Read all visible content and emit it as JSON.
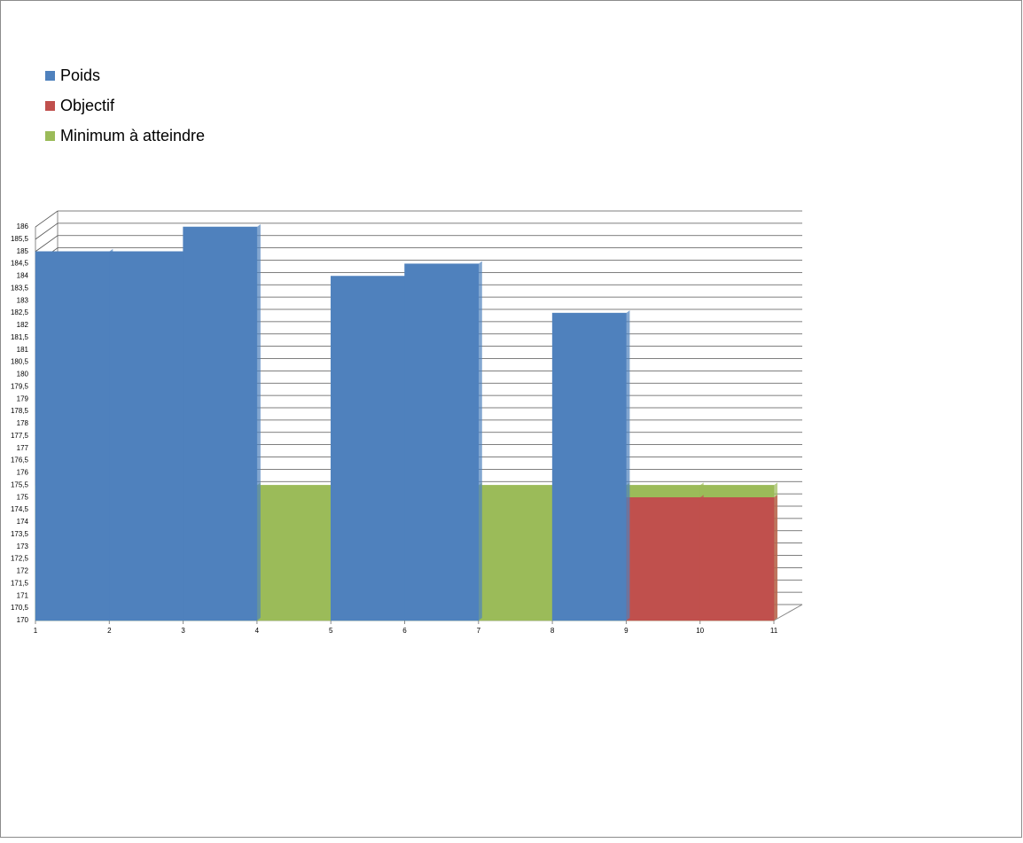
{
  "chart_data": {
    "type": "step-area",
    "x": [
      1,
      2,
      3,
      4,
      5,
      6,
      7,
      8,
      9,
      10,
      11
    ],
    "series": [
      {
        "name": "Minimum à atteindre",
        "color": "#9bbb59",
        "values": [
          175.5,
          175.5,
          175.5,
          175.5,
          175.5,
          175.5,
          175.5,
          175.5,
          175.5,
          175.5,
          null
        ]
      },
      {
        "name": "Objectif",
        "color": "#c0504d",
        "values": [
          null,
          null,
          null,
          null,
          null,
          null,
          null,
          null,
          175,
          175,
          null
        ]
      },
      {
        "name": "Poids",
        "color": "#4f81bd",
        "values": [
          185,
          185,
          186,
          null,
          184,
          184.5,
          null,
          182.5,
          null,
          null,
          null
        ]
      }
    ],
    "legend_order": [
      2,
      1,
      0
    ],
    "xlim": [
      1,
      11
    ],
    "xticks": [
      1,
      2,
      3,
      4,
      5,
      6,
      7,
      8,
      9,
      10,
      11
    ],
    "ylim": [
      170,
      186
    ],
    "yticks": [
      170,
      {
        "value": 170.5,
        "label": "170,5"
      },
      171,
      {
        "value": 171.5,
        "label": "171,5"
      },
      172,
      {
        "value": 172.5,
        "label": "172,5"
      },
      173,
      {
        "value": 173.5,
        "label": "173,5"
      },
      174,
      {
        "value": 174.5,
        "label": "174,5"
      },
      175,
      {
        "value": 175.5,
        "label": "175,5"
      },
      176,
      {
        "value": 176.5,
        "label": "176,5"
      },
      177,
      {
        "value": 177.5,
        "label": "177,5"
      },
      178,
      {
        "value": 178.5,
        "label": "178,5"
      },
      179,
      {
        "value": 179.5,
        "label": "179,5"
      },
      180,
      {
        "value": 180.5,
        "label": "180,5"
      },
      181,
      {
        "value": 181.5,
        "label": "181,5"
      },
      182,
      {
        "value": 182.5,
        "label": "182,5"
      },
      183,
      {
        "value": 183.5,
        "label": "183,5"
      },
      184,
      {
        "value": 184.5,
        "label": "184,5"
      },
      185,
      {
        "value": 185.5,
        "label": "185,5"
      },
      186
    ],
    "grid": true
  }
}
